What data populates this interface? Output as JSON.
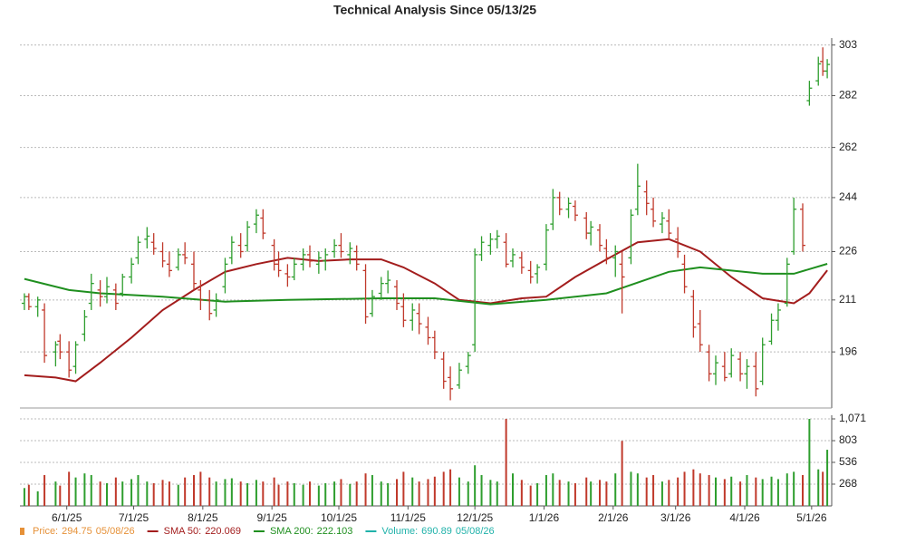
{
  "chart_data": {
    "type": "ohlc",
    "title": "Technical Analysis Since 05/13/25",
    "x": [
      "5/13/25",
      "5/15/25",
      "5/19/25",
      "5/22/25",
      "5/27/25",
      "5/29/25",
      "6/2/25",
      "6/5/25",
      "6/9/25",
      "6/12/25",
      "6/16/25",
      "6/19/25",
      "6/23/25",
      "6/26/25",
      "6/30/25",
      "7/3/25",
      "7/7/25",
      "7/10/25",
      "7/14/25",
      "7/17/25",
      "7/21/25",
      "7/24/25",
      "7/28/25",
      "7/31/25",
      "8/4/25",
      "8/7/25",
      "8/11/25",
      "8/14/25",
      "8/18/25",
      "8/21/25",
      "8/25/25",
      "8/28/25",
      "9/2/25",
      "9/4/25",
      "9/8/25",
      "9/11/25",
      "9/15/25",
      "9/18/25",
      "9/22/25",
      "9/25/25",
      "9/29/25",
      "10/2/25",
      "10/6/25",
      "10/9/25",
      "10/13/25",
      "10/16/25",
      "10/20/25",
      "10/23/25",
      "10/27/25",
      "10/30/25",
      "11/3/25",
      "11/6/25",
      "11/10/25",
      "11/13/25",
      "11/17/25",
      "11/20/25",
      "11/24/25",
      "11/28/25",
      "12/1/25",
      "12/4/25",
      "12/8/25",
      "12/11/25",
      "12/15/25",
      "12/18/25",
      "12/22/25",
      "12/26/25",
      "12/29/25",
      "1/2/26",
      "1/5/26",
      "1/8/26",
      "1/12/26",
      "1/15/26",
      "1/20/26",
      "1/22/26",
      "1/26/26",
      "1/29/26",
      "2/2/26",
      "2/5/26",
      "2/9/26",
      "2/12/26",
      "2/16/26",
      "2/19/26",
      "2/23/26",
      "2/26/26",
      "3/2/26",
      "3/5/26",
      "3/9/26",
      "3/12/26",
      "3/16/26",
      "3/19/26",
      "3/23/26",
      "3/26/26",
      "3/30/26",
      "4/2/26",
      "4/6/26",
      "4/9/26",
      "4/13/26",
      "4/16/26",
      "4/20/26",
      "4/23/26",
      "4/27/26",
      "4/30/26",
      "5/4/26",
      "5/6/26",
      "5/8/26"
    ],
    "ohlc": [
      [
        210,
        213,
        208,
        212
      ],
      [
        212,
        213,
        208,
        209
      ],
      [
        209,
        212,
        206,
        211
      ],
      [
        208,
        210,
        193,
        195
      ],
      [
        196,
        199,
        192,
        198
      ],
      [
        199,
        201,
        194,
        196
      ],
      [
        196,
        199,
        189,
        191
      ],
      [
        192,
        199,
        190,
        198
      ],
      [
        201,
        208,
        199,
        206
      ],
      [
        210,
        219,
        208,
        216
      ],
      [
        214,
        217,
        209,
        212
      ],
      [
        212,
        218,
        210,
        215
      ],
      [
        214,
        216,
        208,
        210
      ],
      [
        213,
        219,
        212,
        218
      ],
      [
        218,
        224,
        216,
        222
      ],
      [
        224,
        231,
        222,
        229
      ],
      [
        230,
        234,
        227,
        231
      ],
      [
        229,
        232,
        225,
        227
      ],
      [
        226,
        229,
        221,
        223
      ],
      [
        222,
        226,
        218,
        220
      ],
      [
        221,
        227,
        220,
        225
      ],
      [
        225,
        229,
        222,
        224
      ],
      [
        222,
        226,
        214,
        216
      ],
      [
        214,
        217,
        208,
        211
      ],
      [
        211,
        214,
        205,
        207
      ],
      [
        208,
        213,
        206,
        211
      ],
      [
        215,
        224,
        213,
        222
      ],
      [
        224,
        231,
        222,
        229
      ],
      [
        228,
        232,
        224,
        226
      ],
      [
        228,
        236,
        226,
        234
      ],
      [
        235,
        240,
        232,
        238
      ],
      [
        237,
        240,
        230,
        232
      ],
      [
        228,
        230,
        220,
        222
      ],
      [
        222,
        226,
        218,
        220
      ],
      [
        219,
        222,
        215,
        218
      ],
      [
        218,
        224,
        217,
        222
      ],
      [
        222,
        227,
        220,
        225
      ],
      [
        225,
        228,
        221,
        223
      ],
      [
        222,
        226,
        219,
        224
      ],
      [
        223,
        227,
        220,
        225
      ],
      [
        226,
        230,
        224,
        228
      ],
      [
        228,
        232,
        224,
        226
      ],
      [
        225,
        229,
        222,
        227
      ],
      [
        226,
        228,
        220,
        222
      ],
      [
        220,
        222,
        204,
        206
      ],
      [
        207,
        214,
        206,
        212
      ],
      [
        213,
        218,
        211,
        216
      ],
      [
        216,
        220,
        213,
        217
      ],
      [
        215,
        217,
        208,
        210
      ],
      [
        209,
        213,
        203,
        205
      ],
      [
        205,
        210,
        202,
        208
      ],
      [
        207,
        210,
        201,
        204
      ],
      [
        203,
        206,
        198,
        200
      ],
      [
        200,
        202,
        194,
        196
      ],
      [
        194,
        196,
        186,
        188
      ],
      [
        189,
        192,
        183,
        186
      ],
      [
        187,
        193,
        186,
        191
      ],
      [
        192,
        196,
        190,
        195
      ],
      [
        198,
        227,
        196,
        225
      ],
      [
        225,
        231,
        223,
        229
      ],
      [
        228,
        232,
        225,
        230
      ],
      [
        230,
        233,
        227,
        231
      ],
      [
        229,
        232,
        221,
        222
      ],
      [
        223,
        227,
        221,
        225
      ],
      [
        224,
        226,
        219,
        221
      ],
      [
        220,
        223,
        216,
        218
      ],
      [
        219,
        222,
        216,
        221
      ],
      [
        222,
        235,
        220,
        233
      ],
      [
        235,
        247,
        233,
        244
      ],
      [
        244,
        246,
        238,
        240
      ],
      [
        240,
        244,
        237,
        242
      ],
      [
        241,
        243,
        236,
        238
      ],
      [
        237,
        239,
        230,
        232
      ],
      [
        232,
        236,
        228,
        234
      ],
      [
        233,
        235,
        226,
        228
      ],
      [
        227,
        230,
        222,
        224
      ],
      [
        224,
        228,
        218,
        226
      ],
      [
        222,
        226,
        207,
        218
      ],
      [
        224,
        240,
        222,
        238
      ],
      [
        240,
        256,
        238,
        248
      ],
      [
        246,
        250,
        238,
        242
      ],
      [
        240,
        244,
        234,
        236
      ],
      [
        235,
        239,
        232,
        237
      ],
      [
        236,
        240,
        230,
        232
      ],
      [
        230,
        234,
        224,
        226
      ],
      [
        222,
        225,
        213,
        215
      ],
      [
        212,
        214,
        200,
        203
      ],
      [
        204,
        208,
        196,
        198
      ],
      [
        196,
        198,
        188,
        190
      ],
      [
        190,
        195,
        187,
        193
      ],
      [
        192,
        196,
        188,
        189
      ],
      [
        190,
        197,
        189,
        195
      ],
      [
        194,
        196,
        188,
        190
      ],
      [
        190,
        194,
        186,
        192
      ],
      [
        192,
        196,
        184,
        186
      ],
      [
        188,
        200,
        187,
        198
      ],
      [
        199,
        207,
        198,
        205
      ],
      [
        205,
        210,
        202,
        208
      ],
      [
        210,
        224,
        209,
        222
      ],
      [
        226,
        244,
        225,
        240
      ],
      [
        240,
        242,
        226,
        228
      ],
      [
        280,
        288,
        278,
        285
      ],
      [
        288,
        298,
        286,
        295
      ],
      [
        296,
        302,
        290,
        292
      ],
      [
        292,
        297,
        289,
        294.75
      ]
    ],
    "up_color": "#2e9e2e",
    "down_color": "#c0392b",
    "log_scale": true,
    "grid": true,
    "xlim": [
      "5/11/25",
      "5/10/26"
    ],
    "xticks": [
      "6/1/25",
      "7/1/25",
      "8/1/25",
      "9/1/25",
      "10/1/25",
      "11/1/25",
      "12/1/25",
      "1/1/26",
      "2/1/26",
      "3/1/26",
      "4/1/26",
      "5/1/26"
    ],
    "ylim": [
      181,
      306
    ],
    "yticks": [
      196,
      211,
      226,
      244,
      262,
      282,
      303
    ],
    "lines": [
      {
        "color": "#a31d1d",
        "x": [
          "5/13/25",
          "5/27/25",
          "6/5/25",
          "6/16/25",
          "6/30/25",
          "7/14/25",
          "7/28/25",
          "8/11/25",
          "8/25/25",
          "9/8/25",
          "9/22/25",
          "10/6/25",
          "10/20/25",
          "10/30/25",
          "11/13/25",
          "11/24/25",
          "12/8/25",
          "12/22/25",
          "1/2/26",
          "1/15/26",
          "1/29/26",
          "2/12/26",
          "2/26/26",
          "3/12/26",
          "3/26/26",
          "4/9/26",
          "4/23/26",
          "4/30/26",
          "5/8/26"
        ],
        "values": [
          189.6,
          189,
          188,
          193,
          200,
          208,
          214,
          219.6,
          222,
          224,
          223,
          223.5,
          223.5,
          221,
          216,
          211,
          210,
          211.5,
          212,
          218,
          223.5,
          229,
          230,
          226,
          218,
          211.5,
          210,
          213,
          220.069
        ]
      },
      {
        "color": "#1f8f1f",
        "x": [
          "5/13/25",
          "6/2/25",
          "6/16/25",
          "7/14/25",
          "8/11/25",
          "9/8/25",
          "10/20/25",
          "11/13/25",
          "12/8/25",
          "1/2/26",
          "1/29/26",
          "2/26/26",
          "3/12/26",
          "3/26/26",
          "4/9/26",
          "4/23/26",
          "5/8/26"
        ],
        "values": [
          217.4,
          214,
          213,
          212,
          210.5,
          211,
          211.5,
          211.5,
          209.7,
          211,
          213,
          219.6,
          221,
          220,
          219,
          219,
          222.103
        ]
      }
    ],
    "volume": {
      "color_up": "#2e9e2e",
      "color_down": "#c0392b",
      "values": [
        220,
        260,
        180,
        380,
        300,
        250,
        420,
        350,
        400,
        380,
        300,
        280,
        350,
        300,
        330,
        380,
        300,
        280,
        320,
        300,
        260,
        350,
        380,
        420,
        350,
        300,
        330,
        340,
        300,
        280,
        320,
        300,
        350,
        260,
        300,
        280,
        260,
        300,
        250,
        280,
        300,
        330,
        270,
        300,
        400,
        380,
        300,
        280,
        330,
        420,
        350,
        300,
        330,
        360,
        420,
        450,
        350,
        300,
        500,
        380,
        320,
        300,
        1071,
        400,
        320,
        250,
        280,
        380,
        400,
        320,
        300,
        280,
        350,
        300,
        320,
        300,
        400,
        800,
        420,
        400,
        350,
        380,
        300,
        320,
        350,
        420,
        450,
        400,
        380,
        350,
        330,
        360,
        300,
        380,
        350,
        330,
        360,
        330,
        400,
        420,
        380,
        1071,
        450,
        420,
        690.89
      ],
      "ylim": [
        0,
        1071
      ],
      "yticks": [
        268,
        536,
        803,
        {
          "value": 1071,
          "label": "1,071"
        }
      ]
    },
    "legend": [
      {
        "label": "Price:",
        "value": 294.75,
        "date": "05/08/26",
        "color": "#e69138"
      },
      {
        "label": "SMA 50:",
        "value": 220.069,
        "color": "#a31d1d"
      },
      {
        "label": "SMA 200:",
        "value": 222.103,
        "color": "#1f8f1f"
      },
      {
        "label": "Volume:",
        "value": 690.89,
        "date": "05/08/26",
        "color": "#20b2aa"
      }
    ]
  }
}
